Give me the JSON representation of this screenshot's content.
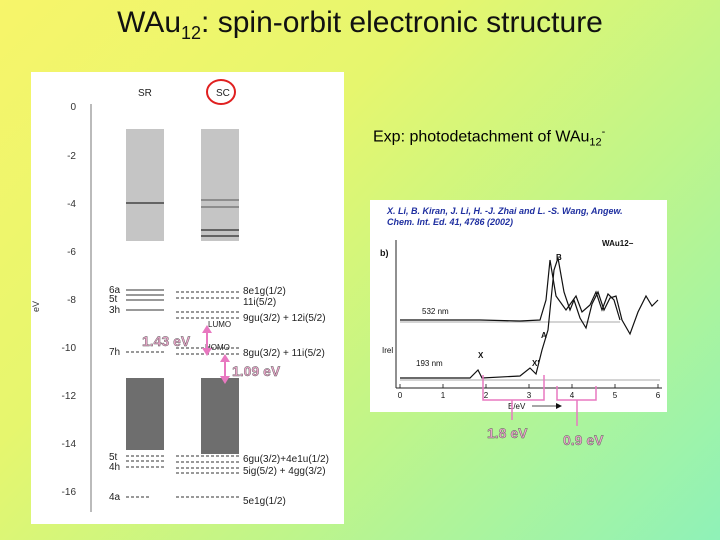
{
  "slide": {
    "title_main": "WAu",
    "title_sub": "12",
    "title_rest": ": spin-orbit electronic structure"
  },
  "levels_diagram": {
    "col_sr": "SR",
    "col_sc": "SC",
    "axis_title": "eV",
    "y_ticks": [
      "0",
      "-2",
      "-4",
      "-6",
      "-8",
      "-10",
      "-12",
      "-14",
      "-16"
    ],
    "left_labels": [
      "6a",
      "5t",
      "3h",
      "7h",
      "5t",
      "4h",
      "4a"
    ],
    "right_labels": [
      "8e1g(1/2)",
      "11i(5/2)",
      "9gu(3/2) + 12i(5/2)",
      "8gu(3/2) + 11i(5/2)",
      "6gu(3/2)+4e1u(1/2)",
      "5ig(5/2) + 4gg(3/2)",
      "5e1g(1/2)"
    ],
    "lumo_label": "LUMO",
    "homo_label": "HOMO",
    "gap_sr": "1.43 eV",
    "gap_sc": "1.09 eV",
    "colors": {
      "upper_band": "#c5c5c5",
      "lower_band": "#6e6e6e",
      "circle": "#e02020",
      "arrow": "#e878c0"
    }
  },
  "experiment": {
    "label_main": "Exp: photodetachment of WAu",
    "label_sub": "12",
    "label_sup": "-",
    "citation_line1": "X. Li, B. Kiran, J. Li, H. -J. Zhai and L. -S. Wang, Angew.",
    "citation_line2": "Chem. Int. Ed. 41, 4786 (2002)",
    "panel_label": "b)",
    "species": "WAu12−",
    "trace_top": "532 nm",
    "trace_bottom": "193 nm",
    "y_label": "Irel",
    "peak_x": "X",
    "peak_x2": "X'",
    "peak_a": "A",
    "peak_b": "B",
    "x_ticks": [
      "0",
      "1",
      "2",
      "3",
      "4",
      "5",
      "6"
    ],
    "x_label": "E/eV",
    "gap1": "1.8 eV",
    "gap2": "0.9 eV"
  }
}
